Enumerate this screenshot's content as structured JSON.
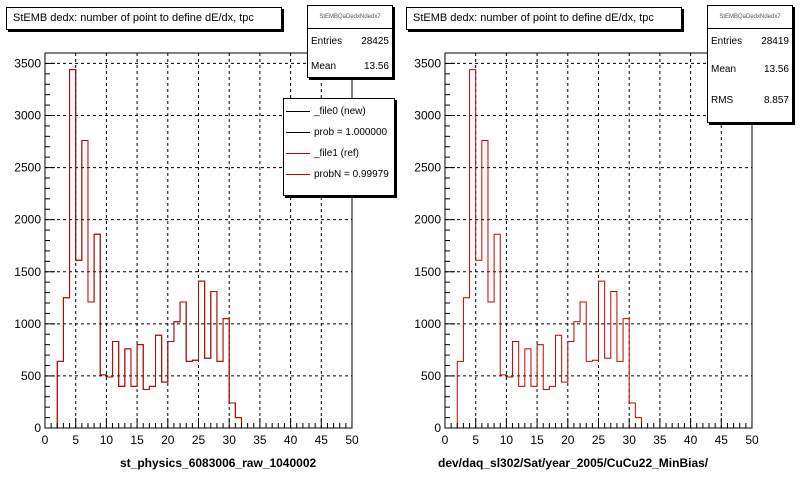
{
  "chart_data": [
    {
      "type": "bar",
      "title": "StEMB dedx: number of point to define dE/dx, tpc",
      "xlabel": "st_physics_6083006_raw_1040002",
      "xlim": [
        0,
        50
      ],
      "ylim": [
        0,
        3600
      ],
      "xticks": [
        "0",
        "5",
        "10",
        "15",
        "20",
        "25",
        "30",
        "35",
        "40",
        "45",
        "50"
      ],
      "yticks": [
        "0",
        "500",
        "1000",
        "1500",
        "2000",
        "2500",
        "3000",
        "3500"
      ],
      "grid": true,
      "bin_edges_start": 0,
      "bin_width": 1,
      "stats": {
        "name": "StEMBQaDedxNdedx7",
        "rows": [
          {
            "label": "Entries",
            "value": "28425"
          },
          {
            "label": "Mean",
            "value": "13.56"
          }
        ]
      },
      "legend": {
        "placement": "top-right",
        "entries": [
          {
            "label": "_file0 (new)",
            "color": "#000000"
          },
          {
            "label": "prob = 1.000000",
            "color": "#000000"
          },
          {
            "label": "_file1 (ref)",
            "color": "#cc0000"
          },
          {
            "label": "probN = 0.99979",
            "color": "#cc0000"
          }
        ]
      },
      "series": [
        {
          "name": "_file0 (new)",
          "color": "#000000",
          "values": [
            0,
            0,
            640,
            1250,
            3440,
            1610,
            2760,
            1210,
            1860,
            510,
            490,
            830,
            400,
            760,
            400,
            800,
            370,
            400,
            890,
            440,
            830,
            1020,
            1210,
            640,
            650,
            1410,
            670,
            1310,
            640,
            1050,
            240,
            100,
            0,
            0,
            0,
            0,
            0,
            0,
            0,
            0,
            0,
            0,
            0,
            0,
            0,
            0,
            0,
            0,
            0,
            0
          ]
        },
        {
          "name": "_file1 (ref)",
          "color": "#cc0000",
          "values": [
            0,
            0,
            640,
            1250,
            3440,
            1610,
            2760,
            1210,
            1860,
            510,
            490,
            830,
            400,
            760,
            400,
            800,
            370,
            400,
            890,
            440,
            830,
            1020,
            1210,
            640,
            650,
            1410,
            670,
            1310,
            640,
            1050,
            240,
            100,
            0,
            0,
            0,
            0,
            0,
            0,
            0,
            0,
            0,
            0,
            0,
            0,
            0,
            0,
            0,
            0,
            0,
            0
          ]
        }
      ]
    },
    {
      "type": "bar",
      "title": "StEMB dedx: number of point to define dE/dx, tpc",
      "xlabel": "dev/daq_sl302/Sat/year_2005/CuCu22_MinBias/",
      "xlim": [
        0,
        50
      ],
      "ylim": [
        0,
        3600
      ],
      "xticks": [
        "0",
        "5",
        "10",
        "15",
        "20",
        "25",
        "30",
        "35",
        "40",
        "45",
        "50"
      ],
      "yticks": [
        "0",
        "500",
        "1000",
        "1500",
        "2000",
        "2500",
        "3000",
        "3500"
      ],
      "grid": true,
      "bin_edges_start": 0,
      "bin_width": 1,
      "stats": {
        "name": "StEMBQaDedxNdedx7",
        "rows": [
          {
            "label": "Entries",
            "value": "28419"
          },
          {
            "label": "Mean",
            "value": "13.56"
          },
          {
            "label": "RMS",
            "value": "8.857"
          }
        ]
      },
      "series": [
        {
          "name": "",
          "color": "#cc0000",
          "values": [
            0,
            0,
            640,
            1250,
            3440,
            1610,
            2760,
            1210,
            1860,
            510,
            490,
            830,
            400,
            760,
            400,
            800,
            370,
            400,
            890,
            440,
            830,
            1020,
            1210,
            640,
            650,
            1410,
            670,
            1310,
            640,
            1050,
            240,
            100,
            0,
            0,
            0,
            0,
            0,
            0,
            0,
            0,
            0,
            0,
            0,
            0,
            0,
            0,
            0,
            0,
            0,
            0
          ]
        }
      ]
    }
  ]
}
